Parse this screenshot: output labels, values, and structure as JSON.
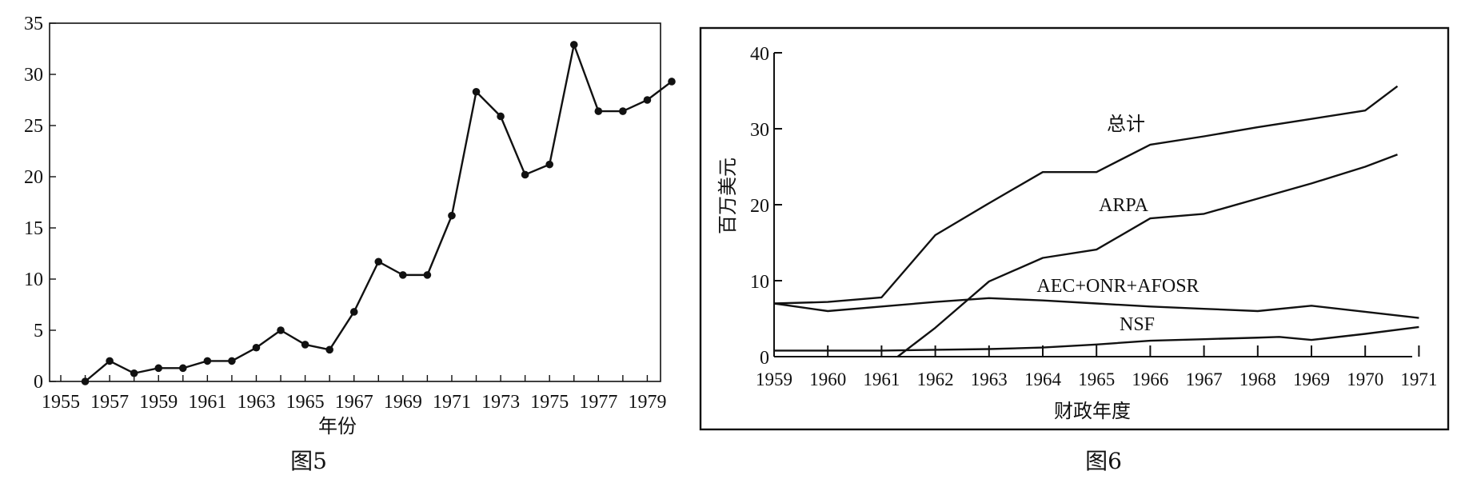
{
  "chart_data": [
    {
      "type": "line",
      "caption": "图5",
      "xlabel": "年份",
      "ylabel": "",
      "xlim": [
        1955,
        1980
      ],
      "ylim": [
        0,
        35
      ],
      "y_ticks": [
        0,
        5,
        10,
        15,
        20,
        25,
        30,
        35
      ],
      "x_tick_labels": [
        1955,
        1957,
        1959,
        1961,
        1963,
        1965,
        1967,
        1969,
        1971,
        1973,
        1975,
        1977,
        1979
      ],
      "markers": true,
      "grid": false,
      "series": [
        {
          "x": [
            1956,
            1957,
            1958,
            1959,
            1960,
            1961,
            1962,
            1963,
            1964,
            1965,
            1966,
            1967,
            1968,
            1969,
            1970,
            1971,
            1972,
            1973,
            1974,
            1975,
            1976,
            1977,
            1978,
            1979,
            1980
          ],
          "values": [
            0.0,
            2.0,
            0.8,
            1.3,
            1.3,
            2.0,
            2.0,
            3.3,
            5.0,
            3.6,
            3.1,
            6.8,
            11.7,
            10.4,
            10.4,
            16.2,
            28.3,
            25.9,
            20.2,
            21.2,
            32.9,
            26.4,
            26.4,
            27.5,
            29.3
          ]
        }
      ]
    },
    {
      "type": "line",
      "caption": "图6",
      "xlabel": "财政年度",
      "ylabel": "百万美元",
      "xlim": [
        1959,
        1971
      ],
      "ylim": [
        0,
        40
      ],
      "y_ticks": [
        0,
        10,
        20,
        30,
        40
      ],
      "x_tick_labels": [
        1959,
        1960,
        1961,
        1962,
        1963,
        1964,
        1965,
        1966,
        1967,
        1968,
        1969,
        1970,
        1971
      ],
      "grid": false,
      "series": [
        {
          "name": "总计",
          "x": [
            1959,
            1960,
            1961,
            1962,
            1963,
            1964,
            1965,
            1966,
            1967,
            1968,
            1969,
            1970,
            1970.6
          ],
          "values": [
            7.0,
            7.2,
            7.8,
            16.0,
            20.2,
            24.3,
            24.3,
            27.9,
            29.0,
            30.2,
            31.3,
            32.4,
            35.6
          ]
        },
        {
          "name": "ARPA",
          "x": [
            1961.3,
            1962,
            1963,
            1964,
            1965,
            1966,
            1967,
            1968,
            1969,
            1970,
            1970.6
          ],
          "values": [
            0.0,
            3.8,
            9.9,
            13.0,
            14.1,
            18.2,
            18.8,
            20.8,
            22.8,
            25.0,
            26.6
          ]
        },
        {
          "name": "AEC+ONR+AFOSR",
          "x": [
            1959,
            1960,
            1961,
            1962,
            1963,
            1964,
            1965,
            1966,
            1967,
            1968,
            1969,
            1970,
            1971
          ],
          "values": [
            7.0,
            6.0,
            6.6,
            7.2,
            7.7,
            7.4,
            7.0,
            6.6,
            6.3,
            6.0,
            6.7,
            5.9,
            5.1
          ]
        },
        {
          "name": "NSF",
          "x": [
            1959,
            1960,
            1961,
            1962,
            1963,
            1964,
            1965,
            1966,
            1967,
            1968,
            1968.4,
            1969,
            1970,
            1971
          ],
          "values": [
            0.8,
            0.8,
            0.8,
            0.9,
            1.0,
            1.2,
            1.6,
            2.1,
            2.3,
            2.5,
            2.6,
            2.2,
            3.0,
            3.9
          ]
        }
      ]
    }
  ]
}
